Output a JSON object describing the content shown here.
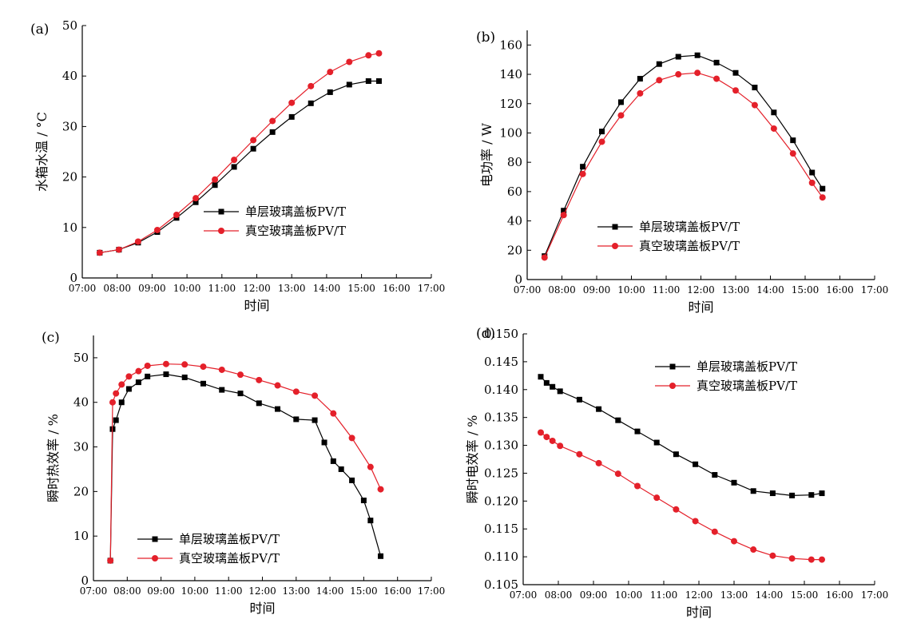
{
  "figure": {
    "panels": [
      "(a)",
      "(b)",
      "(c)",
      "(d)"
    ]
  },
  "chart_data": [
    {
      "type": "line",
      "panel": "(a)",
      "xlabel": "时间",
      "ylabel": "水箱水温 / °C",
      "x_ticks": [
        "07:00",
        "08:00",
        "09:00",
        "10:00",
        "11:00",
        "12:00",
        "13:00",
        "14:00",
        "15:00",
        "16:00",
        "17:00"
      ],
      "y_ticks": [
        "0",
        "10",
        "20",
        "30",
        "40",
        "50"
      ],
      "xlim": [
        "07:00",
        "17:00"
      ],
      "ylim": [
        0,
        50
      ],
      "legend_position": "lower-right",
      "series": [
        {
          "name": "单层玻璃盖板PV/T",
          "color": "#000000",
          "marker": "square",
          "x": [
            "07:30",
            "08:03",
            "08:36",
            "09:09",
            "09:42",
            "10:15",
            "10:48",
            "11:21",
            "11:54",
            "12:27",
            "13:00",
            "13:33",
            "14:06",
            "14:39",
            "15:12",
            "15:30"
          ],
          "y": [
            5.0,
            5.6,
            7.0,
            9.1,
            11.9,
            15.0,
            18.4,
            22.0,
            25.6,
            28.9,
            31.9,
            34.6,
            36.8,
            38.3,
            39.0,
            39.0
          ]
        },
        {
          "name": "真空玻璃盖板PV/T",
          "color": "#e4202a",
          "marker": "circle",
          "x": [
            "07:30",
            "08:03",
            "08:36",
            "09:09",
            "09:42",
            "10:15",
            "10:48",
            "11:21",
            "11:54",
            "12:27",
            "13:00",
            "13:33",
            "14:06",
            "14:39",
            "15:12",
            "15:30"
          ],
          "y": [
            5.0,
            5.6,
            7.2,
            9.5,
            12.5,
            15.8,
            19.5,
            23.4,
            27.3,
            31.1,
            34.7,
            38.0,
            40.8,
            42.8,
            44.1,
            44.5
          ]
        }
      ]
    },
    {
      "type": "line",
      "panel": "(b)",
      "xlabel": "时间",
      "ylabel": "电功率 / W",
      "x_ticks": [
        "07:00",
        "08:00",
        "09:00",
        "10:00",
        "11:00",
        "12:00",
        "13:00",
        "14:00",
        "15:00",
        "16:00",
        "17:00"
      ],
      "y_ticks": [
        "0",
        "20",
        "40",
        "60",
        "80",
        "100",
        "120",
        "140",
        "160"
      ],
      "xlim": [
        "07:00",
        "17:00"
      ],
      "ylim": [
        0,
        170
      ],
      "legend_position": "lower-center",
      "series": [
        {
          "name": "单层玻璃盖板PV/T",
          "color": "#000000",
          "marker": "square",
          "x": [
            "07:30",
            "08:03",
            "08:36",
            "09:09",
            "09:42",
            "10:15",
            "10:48",
            "11:21",
            "11:54",
            "12:27",
            "13:00",
            "13:33",
            "14:06",
            "14:39",
            "15:12",
            "15:30"
          ],
          "y": [
            16,
            47,
            77,
            101,
            121,
            137,
            147,
            152,
            153,
            148,
            141,
            131,
            114,
            95,
            73,
            62
          ]
        },
        {
          "name": "真空玻璃盖板PV/T",
          "color": "#e4202a",
          "marker": "circle",
          "x": [
            "07:30",
            "08:03",
            "08:36",
            "09:09",
            "09:42",
            "10:15",
            "10:48",
            "11:21",
            "11:54",
            "12:27",
            "13:00",
            "13:33",
            "14:06",
            "14:39",
            "15:12",
            "15:30"
          ],
          "y": [
            15,
            44,
            72,
            94,
            112,
            127,
            136,
            140,
            141,
            137,
            129,
            119,
            103,
            86,
            66,
            56
          ]
        }
      ]
    },
    {
      "type": "line",
      "panel": "(c)",
      "xlabel": "时间",
      "ylabel": "瞬时热效率 / %",
      "x_ticks": [
        "07:00",
        "08:00",
        "09:00",
        "10:00",
        "11:00",
        "12:00",
        "13:00",
        "14:00",
        "15:00",
        "16:00",
        "17:00"
      ],
      "y_ticks": [
        "0",
        "10",
        "20",
        "30",
        "40",
        "50"
      ],
      "xlim": [
        "07:00",
        "17:00"
      ],
      "ylim": [
        0,
        55
      ],
      "legend_position": "lower-center",
      "series": [
        {
          "name": "单层玻璃盖板PV/T",
          "color": "#000000",
          "marker": "square",
          "x": [
            "07:30",
            "07:34",
            "07:40",
            "07:50",
            "08:03",
            "08:20",
            "08:36",
            "09:09",
            "09:42",
            "10:15",
            "10:48",
            "11:21",
            "11:54",
            "12:27",
            "13:00",
            "13:33",
            "13:50",
            "14:06",
            "14:20",
            "14:39",
            "15:00",
            "15:12",
            "15:30"
          ],
          "y": [
            4.5,
            34,
            36,
            40,
            43,
            44.5,
            45.8,
            46.3,
            45.6,
            44.2,
            42.8,
            42.0,
            39.8,
            38.5,
            36.2,
            36.0,
            31.0,
            26.8,
            25.0,
            22.5,
            18.0,
            13.5,
            5.5
          ]
        },
        {
          "name": "真空玻璃盖板PV/T",
          "color": "#e4202a",
          "marker": "circle",
          "x": [
            "07:30",
            "07:34",
            "07:40",
            "07:50",
            "08:03",
            "08:20",
            "08:36",
            "09:09",
            "09:42",
            "10:15",
            "10:48",
            "11:21",
            "11:54",
            "12:27",
            "13:00",
            "13:33",
            "14:06",
            "14:39",
            "15:12",
            "15:30"
          ],
          "y": [
            4.5,
            40,
            42,
            44,
            45.8,
            47.0,
            48.2,
            48.6,
            48.5,
            48.0,
            47.3,
            46.2,
            45.0,
            43.8,
            42.4,
            41.5,
            37.5,
            32.0,
            25.5,
            20.5
          ]
        }
      ]
    },
    {
      "type": "line",
      "panel": "(d)",
      "xlabel": "时间",
      "ylabel": "瞬时电效率 / %",
      "x_ticks": [
        "07:00",
        "08:00",
        "09:00",
        "10:00",
        "11:00",
        "12:00",
        "13:00",
        "14:00",
        "15:00",
        "16:00",
        "17:00"
      ],
      "y_ticks": [
        "0.105",
        "0.110",
        "0.115",
        "0.120",
        "0.125",
        "0.130",
        "0.135",
        "0.140",
        "0.145",
        "0.150"
      ],
      "xlim": [
        "07:00",
        "17:00"
      ],
      "ylim": [
        0.105,
        0.15
      ],
      "legend_position": "top-center",
      "series": [
        {
          "name": "单层玻璃盖板PV/T",
          "color": "#000000",
          "marker": "square",
          "x": [
            "07:30",
            "07:40",
            "07:50",
            "08:03",
            "08:36",
            "09:09",
            "09:42",
            "10:15",
            "10:48",
            "11:21",
            "11:54",
            "12:27",
            "13:00",
            "13:33",
            "14:06",
            "14:39",
            "15:12",
            "15:30"
          ],
          "y": [
            0.1423,
            0.1412,
            0.1405,
            0.1397,
            0.1382,
            0.1365,
            0.1345,
            0.1325,
            0.1305,
            0.1284,
            0.1266,
            0.1247,
            0.1233,
            0.1218,
            0.1214,
            0.121,
            0.1211,
            0.1214
          ]
        },
        {
          "name": "真空玻璃盖板PV/T",
          "color": "#e4202a",
          "marker": "circle",
          "x": [
            "07:30",
            "07:40",
            "07:50",
            "08:03",
            "08:36",
            "09:09",
            "09:42",
            "10:15",
            "10:48",
            "11:21",
            "11:54",
            "12:27",
            "13:00",
            "13:33",
            "14:06",
            "14:39",
            "15:12",
            "15:30"
          ],
          "y": [
            0.1323,
            0.1315,
            0.1308,
            0.1299,
            0.1284,
            0.1268,
            0.1249,
            0.1227,
            0.1206,
            0.1185,
            0.1164,
            0.1145,
            0.1128,
            0.1113,
            0.1102,
            0.1097,
            0.1095,
            0.1095
          ]
        }
      ]
    }
  ]
}
